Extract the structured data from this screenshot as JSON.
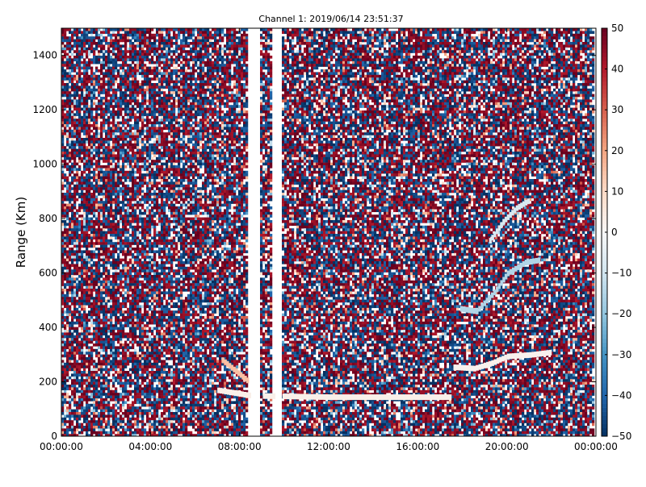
{
  "chart_data": {
    "type": "heatmap",
    "title": "Channel 1: 2019/06/14 23:51:37",
    "xlabel": "",
    "ylabel": "Range (Km)",
    "x_ticks": [
      "00:00:00",
      "04:00:00",
      "08:00:00",
      "12:00:00",
      "16:00:00",
      "20:00:00",
      "00:00:00"
    ],
    "x_range_hours": [
      0,
      24
    ],
    "y_ticks": [
      0,
      200,
      400,
      600,
      800,
      1000,
      1200,
      1400
    ],
    "ylim": [
      0,
      1500
    ],
    "colorbar": {
      "ticks": [
        -50,
        -40,
        -30,
        -20,
        -10,
        0,
        10,
        20,
        30,
        40,
        50
      ],
      "range": [
        -50,
        50
      ],
      "colormap": "RdBu_r",
      "low_color": "#0e3f70",
      "mid_color": "#f7f7f7",
      "high_color": "#67001f"
    },
    "grid": false,
    "data_gaps_hours": [
      [
        8.4,
        8.95
      ],
      [
        9.5,
        9.9
      ],
      [
        23.9,
        24
      ]
    ],
    "features": [
      {
        "name": "echo band 1",
        "points": [
          [
            7.2,
            280
          ],
          [
            7.8,
            240
          ],
          [
            8.4,
            200
          ]
        ],
        "value": 15
      },
      {
        "name": "echo band 2",
        "points": [
          [
            7.0,
            170
          ],
          [
            8.5,
            150
          ],
          [
            12,
            145
          ],
          [
            16,
            145
          ],
          [
            17.5,
            145
          ]
        ],
        "value": 3
      },
      {
        "name": "echo band 3",
        "points": [
          [
            17.9,
            470
          ],
          [
            18.6,
            460
          ],
          [
            19.4,
            530
          ],
          [
            20,
            600
          ],
          [
            20.8,
            640
          ],
          [
            21.5,
            650
          ]
        ],
        "value": -15
      },
      {
        "name": "echo band 4",
        "points": [
          [
            19.2,
            720
          ],
          [
            19.8,
            790
          ],
          [
            20.4,
            840
          ],
          [
            21.0,
            870
          ]
        ],
        "value": -8
      },
      {
        "name": "echo band 5",
        "points": [
          [
            17.6,
            255
          ],
          [
            18.5,
            250
          ],
          [
            19.3,
            270
          ],
          [
            20,
            295
          ],
          [
            21,
            300
          ],
          [
            22,
            310
          ]
        ],
        "value": 2
      }
    ]
  }
}
